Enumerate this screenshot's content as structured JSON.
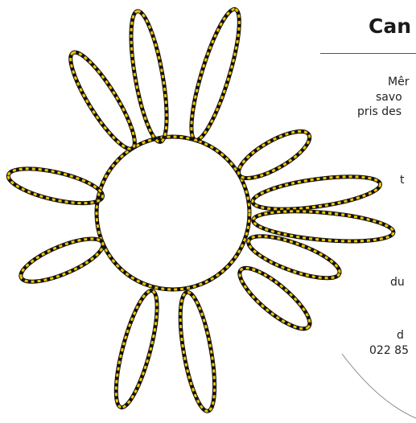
{
  "header": {
    "title": "Can"
  },
  "text_lines": [
    "Mêr",
    "savo",
    "pris des",
    "t",
    "du",
    "d",
    "022 85"
  ]
}
